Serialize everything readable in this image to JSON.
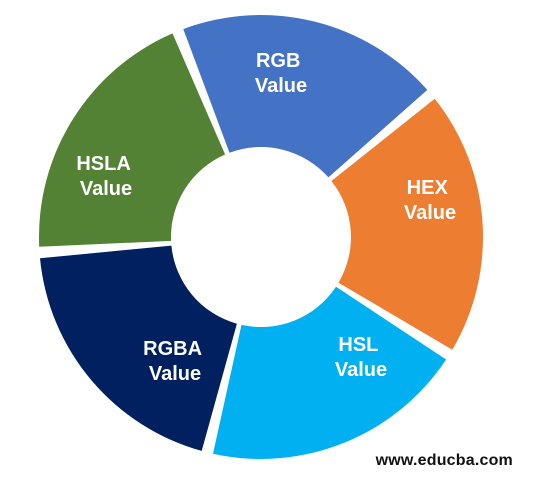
{
  "diagram": {
    "segments": [
      {
        "line1": "RGB",
        "line2": "Value",
        "color": "#4472c4"
      },
      {
        "line1": "HEX",
        "line2": "Value",
        "color": "#ed7d31"
      },
      {
        "line1": "HSL",
        "line2": "Value",
        "color": "#00b0f0"
      },
      {
        "line1": "RGBA",
        "line2": "Value",
        "color": "#002060"
      },
      {
        "line1": "HSLA",
        "line2": "Value",
        "color": "#548235"
      }
    ]
  },
  "footer": {
    "website": "www.educba.com"
  }
}
